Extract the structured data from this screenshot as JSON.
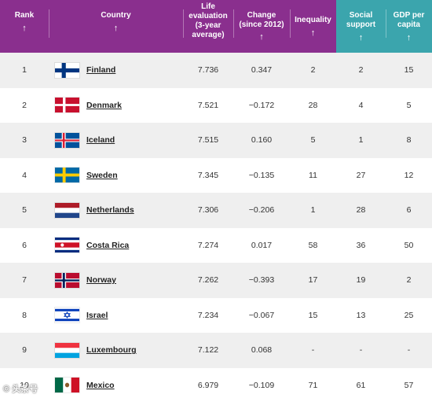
{
  "header": {
    "rank": "Rank",
    "country": "Country",
    "life_lines": [
      "Life",
      "evaluation",
      "(3-year",
      "average)"
    ],
    "change_lines": [
      "Change",
      "(since 2012)"
    ],
    "inequality": "Inequality",
    "social_lines": [
      "Social",
      "support"
    ],
    "gdp_lines": [
      "GDP per",
      "capita"
    ],
    "sort_arrow": "↑"
  },
  "colors": {
    "header_purple": "#8a2f8e",
    "header_teal": "#3ba5ad",
    "row_alt": "#efefef"
  },
  "rows": [
    {
      "rank": "1",
      "country": "Finland",
      "flag": "finland-flag",
      "life": "7.736",
      "change": "0.347",
      "inequality": "2",
      "social": "2",
      "gdp": "15"
    },
    {
      "rank": "2",
      "country": "Denmark",
      "flag": "denmark-flag",
      "life": "7.521",
      "change": "−0.172",
      "inequality": "28",
      "social": "4",
      "gdp": "5"
    },
    {
      "rank": "3",
      "country": "Iceland",
      "flag": "iceland-flag",
      "life": "7.515",
      "change": "0.160",
      "inequality": "5",
      "social": "1",
      "gdp": "8"
    },
    {
      "rank": "4",
      "country": "Sweden",
      "flag": "sweden-flag",
      "life": "7.345",
      "change": "−0.135",
      "inequality": "11",
      "social": "27",
      "gdp": "12"
    },
    {
      "rank": "5",
      "country": "Netherlands",
      "flag": "netherlands-flag",
      "life": "7.306",
      "change": "−0.206",
      "inequality": "1",
      "social": "28",
      "gdp": "6"
    },
    {
      "rank": "6",
      "country": "Costa Rica",
      "flag": "costa-rica-flag",
      "life": "7.274",
      "change": "0.017",
      "inequality": "58",
      "social": "36",
      "gdp": "50"
    },
    {
      "rank": "7",
      "country": "Norway",
      "flag": "norway-flag",
      "life": "7.262",
      "change": "−0.393",
      "inequality": "17",
      "social": "19",
      "gdp": "2"
    },
    {
      "rank": "8",
      "country": "Israel",
      "flag": "israel-flag",
      "life": "7.234",
      "change": "−0.067",
      "inequality": "15",
      "social": "13",
      "gdp": "25"
    },
    {
      "rank": "9",
      "country": "Luxembourg",
      "flag": "luxembourg-flag",
      "life": "7.122",
      "change": "0.068",
      "inequality": "-",
      "social": "-",
      "gdp": "-"
    },
    {
      "rank": "10",
      "country": "Mexico",
      "flag": "mexico-flag",
      "life": "6.979",
      "change": "−0.109",
      "inequality": "71",
      "social": "61",
      "gdp": "57"
    }
  ],
  "watermark": "© 头条号"
}
